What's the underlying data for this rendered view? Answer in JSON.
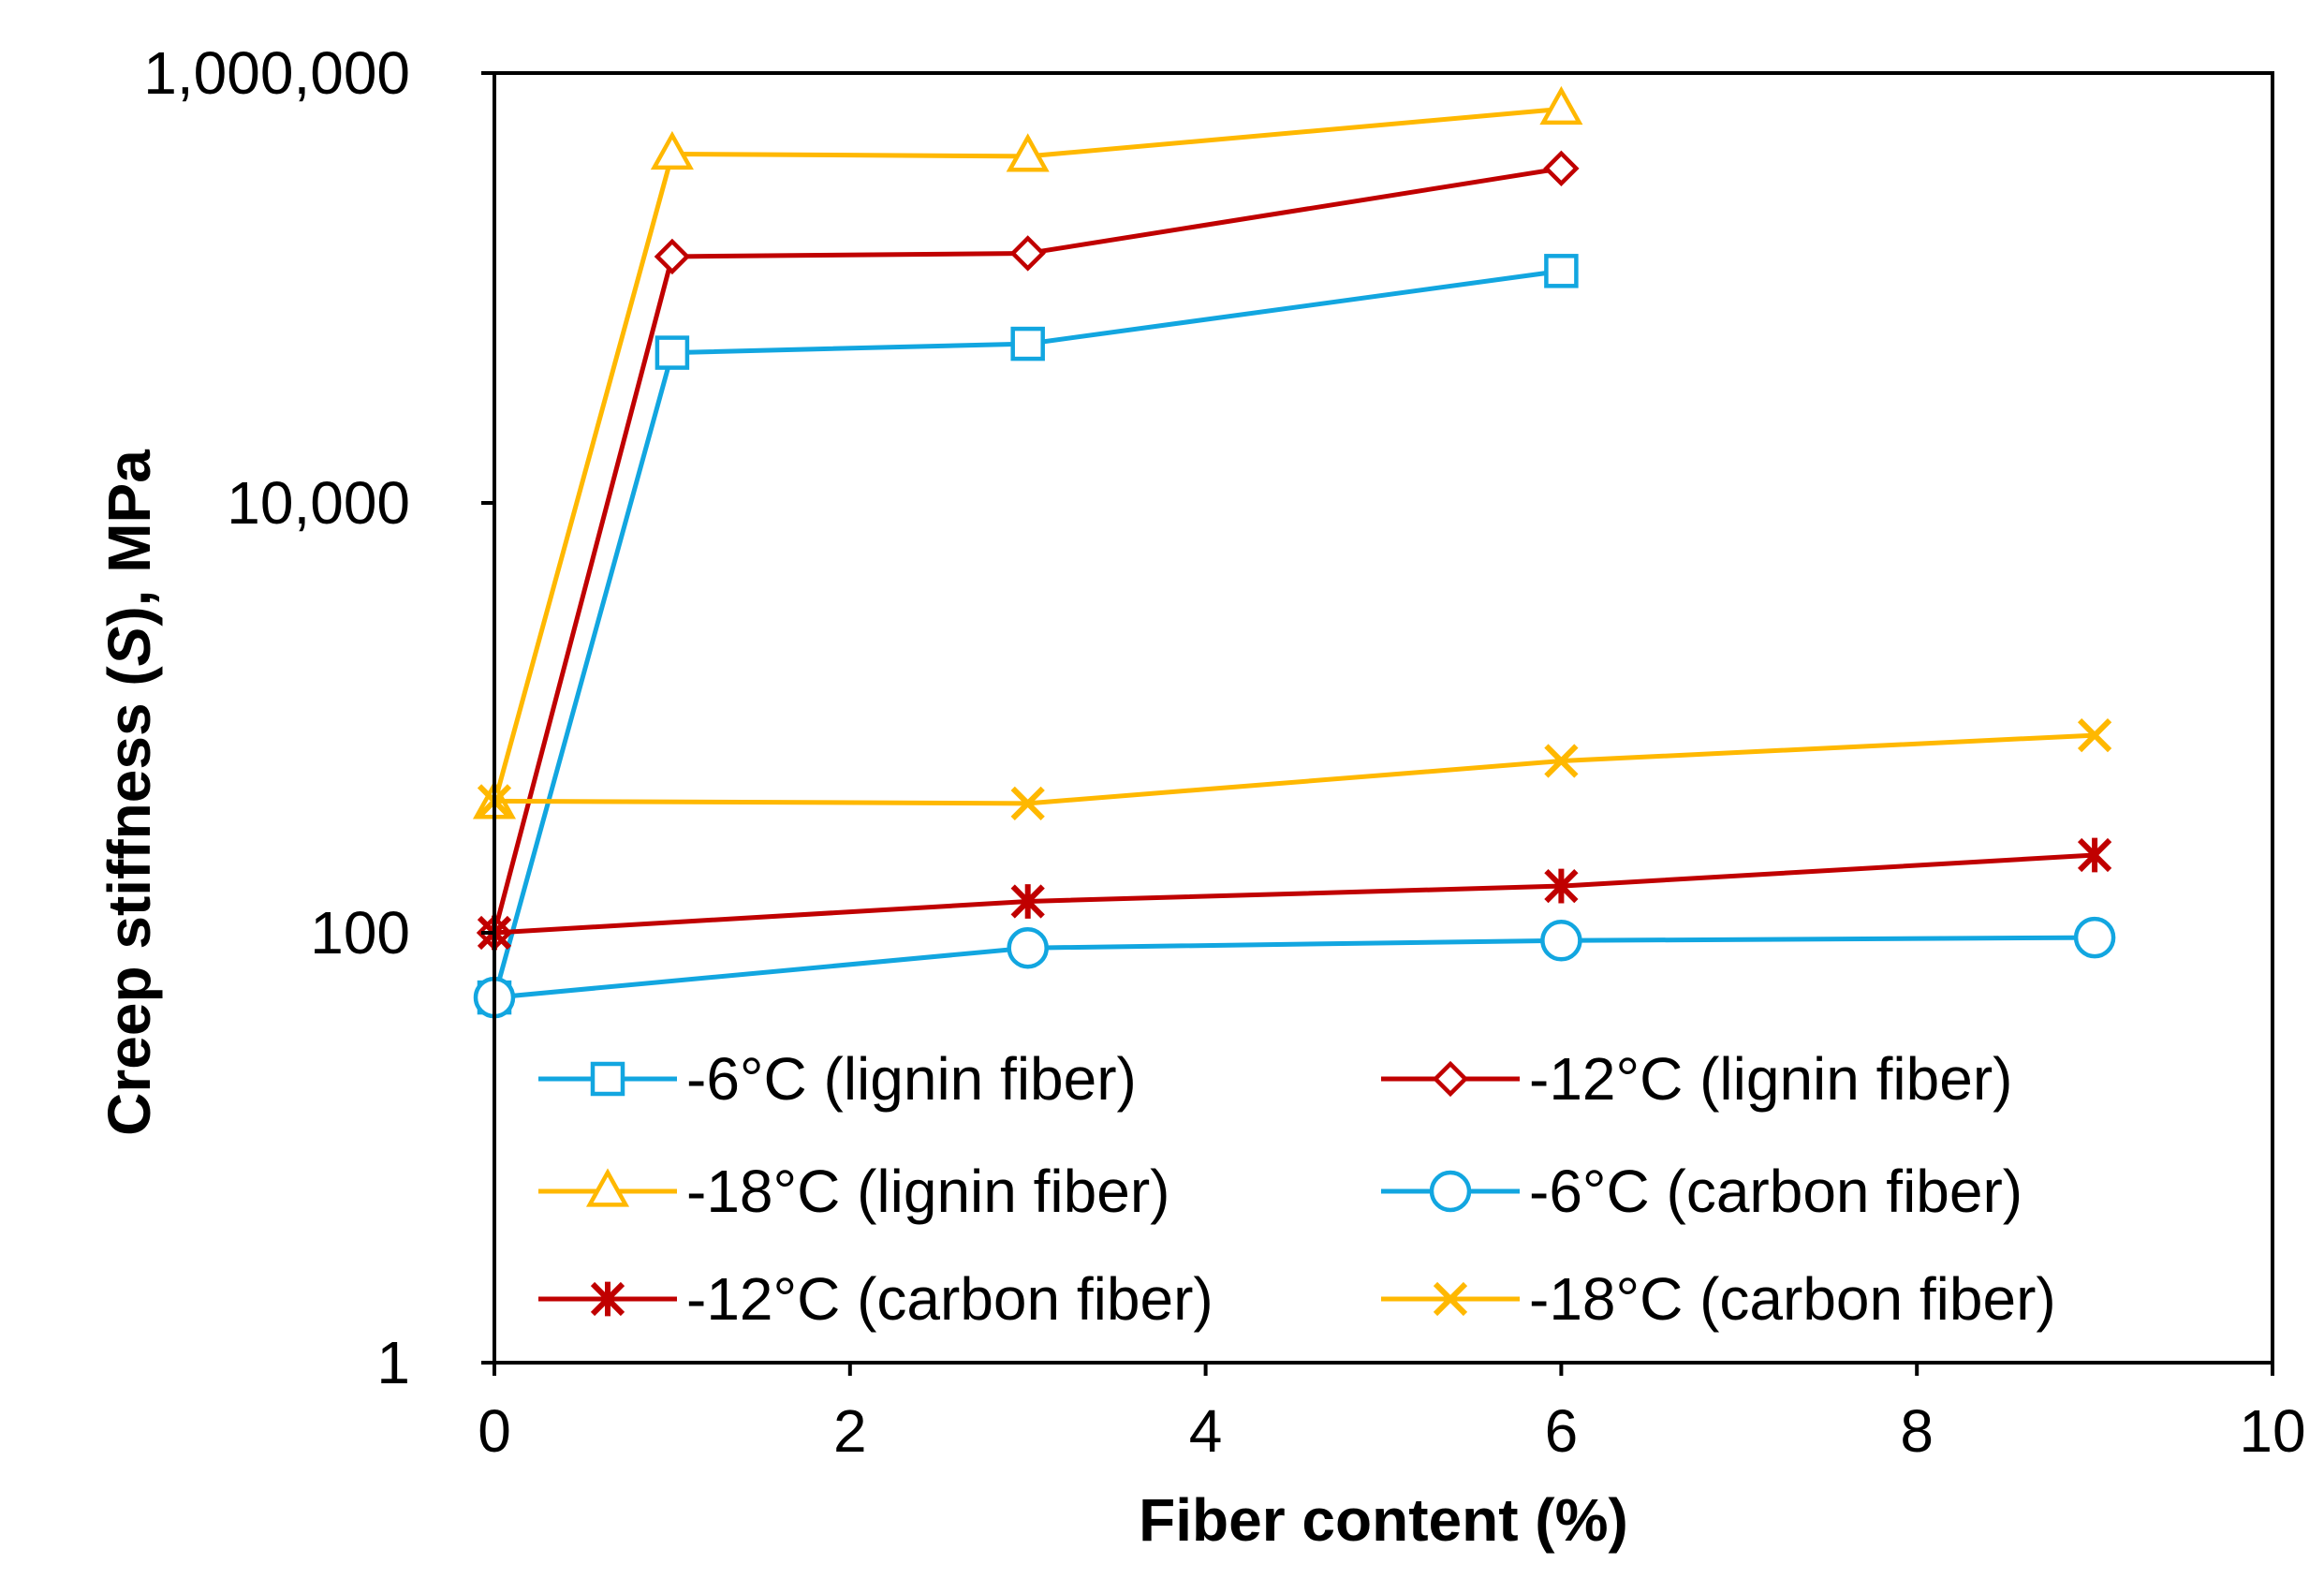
{
  "chart_data": {
    "type": "line",
    "title": "",
    "xlabel": "Fiber content (%)",
    "ylabel_prefix": "Creep stiffness (",
    "ylabel_italic": "S",
    "ylabel_suffix": "), MPa",
    "xlim": [
      0,
      10
    ],
    "ylim": [
      1,
      1000000
    ],
    "yscale": "log",
    "x_ticks": [
      0,
      2,
      4,
      6,
      8,
      10
    ],
    "x_tick_labels": [
      "0",
      "2",
      "4",
      "6",
      "8",
      "10"
    ],
    "y_ticks": [
      1,
      100,
      10000,
      1000000
    ],
    "y_tick_labels": [
      "1",
      "100",
      "10,000",
      "1,000,000"
    ],
    "legend_position": "bottom (inside plot)",
    "series": [
      {
        "name": "-6°C (lignin fiber)",
        "color": "#12A6E0",
        "marker": "square",
        "x": [
          0,
          1,
          3,
          6
        ],
        "y": [
          50,
          50000,
          55000,
          120000
        ]
      },
      {
        "name": "-12°C (lignin fiber)",
        "color": "#C00000",
        "marker": "diamond",
        "x": [
          0,
          1,
          3,
          6
        ],
        "y": [
          100,
          140000,
          145000,
          360000
        ]
      },
      {
        "name": "-18°C (lignin fiber)",
        "color": "#FFB800",
        "marker": "triangle",
        "x": [
          0,
          1,
          3,
          6
        ],
        "y": [
          400,
          420000,
          410000,
          680000
        ]
      },
      {
        "name": "-6°C (carbon fiber)",
        "color": "#12A6E0",
        "marker": "circle",
        "x": [
          0,
          3,
          6,
          9
        ],
        "y": [
          50,
          85,
          92,
          95
        ]
      },
      {
        "name": "-12°C (carbon fiber)",
        "color": "#C00000",
        "marker": "asterisk",
        "x": [
          0,
          3,
          6,
          9
        ],
        "y": [
          100,
          140,
          165,
          230
        ]
      },
      {
        "name": "-18°C (carbon fiber)",
        "color": "#FFB800",
        "marker": "x",
        "x": [
          0,
          3,
          6,
          9
        ],
        "y": [
          410,
          400,
          630,
          830
        ]
      }
    ]
  }
}
